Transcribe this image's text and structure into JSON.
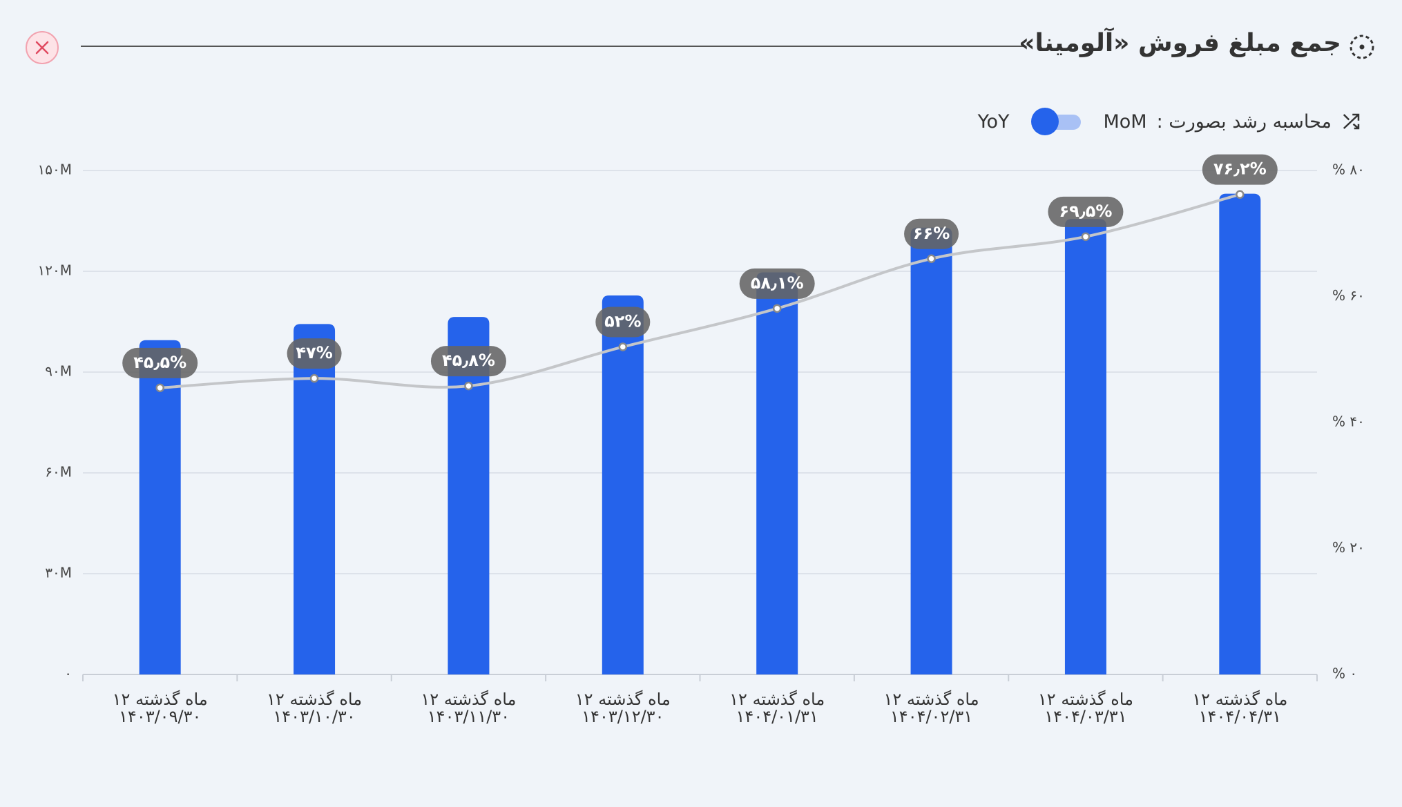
{
  "title": "جمع مبلغ فروش «آلومینا»",
  "toggle": {
    "label": "محاسبه رشد بصورت :",
    "options": [
      "MoM",
      "YoY"
    ]
  },
  "chart_data": {
    "type": "combo",
    "categories": [
      [
        "۱۲ ماه گذشته",
        "۱۴۰۳/۰۹/۳۰"
      ],
      [
        "۱۲ ماه گذشته",
        "۱۴۰۳/۱۰/۳۰"
      ],
      [
        "۱۲ ماه گذشته",
        "۱۴۰۳/۱۱/۳۰"
      ],
      [
        "۱۲ ماه گذشته",
        "۱۴۰۳/۱۲/۳۰"
      ],
      [
        "۱۲ ماه گذشته",
        "۱۴۰۴/۰۱/۳۱"
      ],
      [
        "۱۲ ماه گذشته",
        "۱۴۰۴/۰۲/۳۱"
      ],
      [
        "۱۲ ماه گذشته",
        "۱۴۰۴/۰۳/۳۱"
      ],
      [
        "۱۲ ماه گذشته",
        "۱۴۰۴/۰۴/۳۱"
      ]
    ],
    "series": [
      {
        "type": "bar",
        "color": "#2563eb",
        "values": [
          99.5,
          104.3,
          106.4,
          112.8,
          119.7,
          133,
          135.6,
          143.1
        ]
      },
      {
        "type": "line",
        "axis": "y2",
        "color": "#c4c6c9",
        "values": [
          45.5,
          47,
          45.8,
          52,
          58.1,
          66,
          69.5,
          76.2
        ],
        "value_labels": [
          "۴۵٫۵%",
          "۴۷%",
          "۴۵٫۸%",
          "۵۲%",
          "۵۸٫۱%",
          "۶۶%",
          "۶۹٫۵%",
          "۷۶٫۲%"
        ]
      }
    ],
    "ylim": [
      0,
      150
    ],
    "yticks": [
      {
        "value": 0,
        "label": "۰"
      },
      {
        "value": 30,
        "label": "۳۰M"
      },
      {
        "value": 60,
        "label": "۶۰M"
      },
      {
        "value": 90,
        "label": "۹۰M"
      },
      {
        "value": 120,
        "label": "۱۲۰M"
      },
      {
        "value": 150,
        "label": "۱۵۰M"
      }
    ],
    "y2lim": [
      0,
      80
    ],
    "y2ticks": [
      {
        "value": 0,
        "label": "% ۰"
      },
      {
        "value": 20,
        "label": "% ۲۰"
      },
      {
        "value": 40,
        "label": "% ۴۰"
      },
      {
        "value": 60,
        "label": "% ۶۰"
      },
      {
        "value": 80,
        "label": "% ۸۰"
      }
    ],
    "grid": true
  }
}
